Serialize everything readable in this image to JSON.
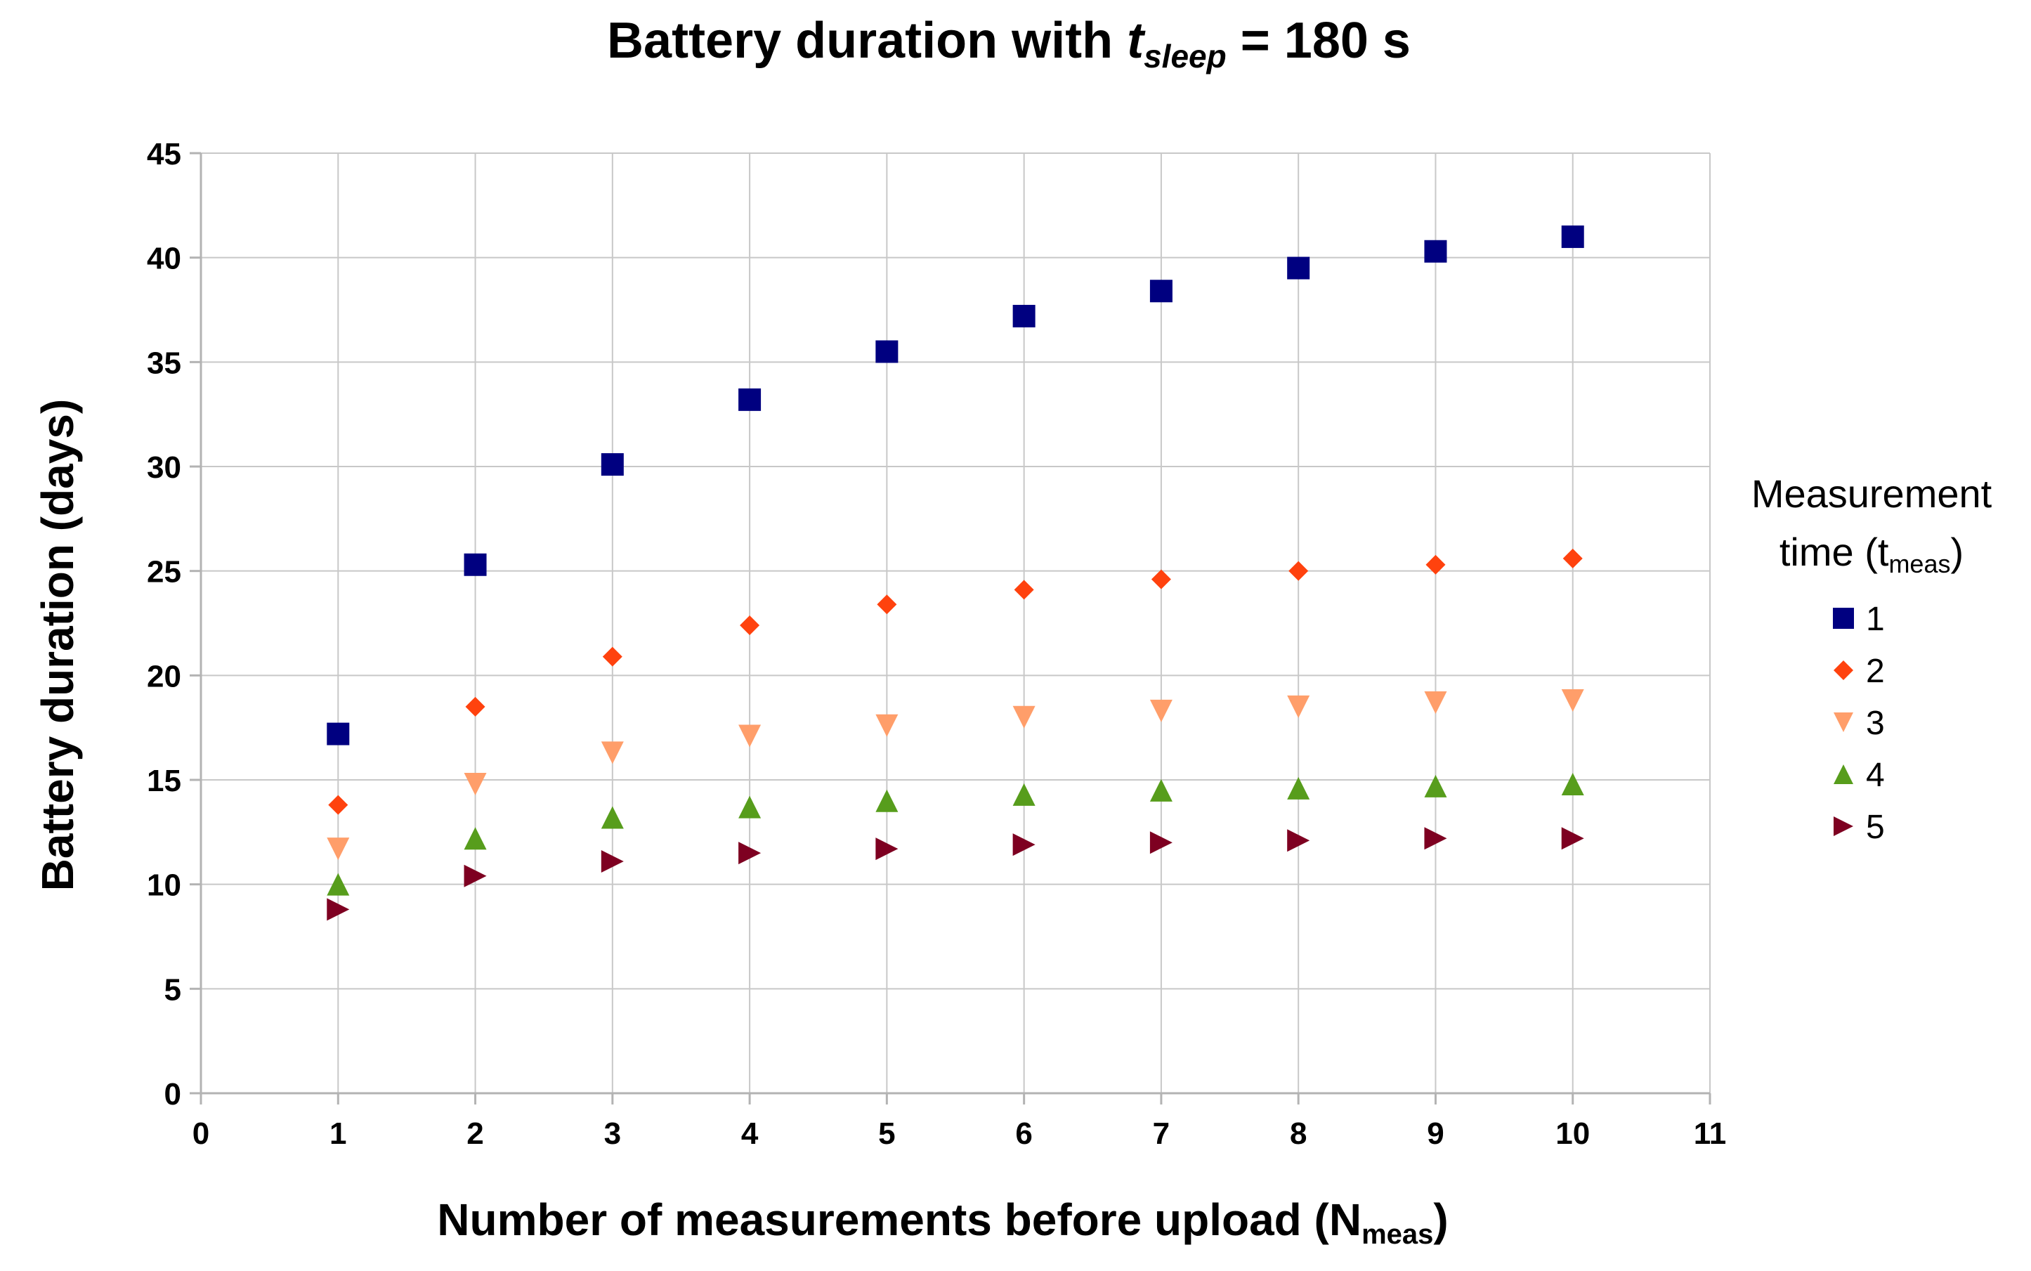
{
  "chart_data": {
    "type": "scatter",
    "title": {
      "main": "Battery duration with ",
      "var_base": "t",
      "var_sub": "sleep",
      "suffix": " = 180 s"
    },
    "xlabel": {
      "main": "Number of measurements before upload (N",
      "sub": "meas",
      "suffix": ")"
    },
    "ylabel": "Battery duration (days)",
    "xlim": [
      0,
      11
    ],
    "ylim": [
      0,
      45
    ],
    "xticks": [
      0,
      1,
      2,
      3,
      4,
      5,
      6,
      7,
      8,
      9,
      10,
      11
    ],
    "yticks": [
      0,
      5,
      10,
      15,
      20,
      25,
      30,
      35,
      40,
      45
    ],
    "grid": true,
    "legend": {
      "title_line1": "Measurement",
      "title_line2_main": "time (t",
      "title_line2_sub": "meas",
      "title_line2_suffix": ")",
      "placement": "right"
    },
    "x": [
      1,
      2,
      3,
      4,
      5,
      6,
      7,
      8,
      9,
      10
    ],
    "series": [
      {
        "name": "1",
        "marker": "square",
        "color": "#000080",
        "values": [
          17.2,
          25.3,
          30.1,
          33.2,
          35.5,
          37.2,
          38.4,
          39.5,
          40.3,
          41.0
        ]
      },
      {
        "name": "2",
        "marker": "diamond",
        "color": "#ff420e",
        "values": [
          13.8,
          18.5,
          20.9,
          22.4,
          23.4,
          24.1,
          24.6,
          25.0,
          25.3,
          25.6
        ]
      },
      {
        "name": "3",
        "marker": "triangle-down",
        "color": "#ff950e",
        "display_color": "#ff9e6a",
        "values": [
          11.7,
          14.8,
          16.3,
          17.1,
          17.6,
          18.0,
          18.3,
          18.5,
          18.7,
          18.8
        ]
      },
      {
        "name": "4",
        "marker": "triangle-up",
        "color": "#579d1c",
        "values": [
          10.0,
          12.2,
          13.2,
          13.7,
          14.0,
          14.3,
          14.5,
          14.6,
          14.7,
          14.8
        ]
      },
      {
        "name": "5",
        "marker": "triangle-right",
        "color": "#7e0021",
        "values": [
          8.8,
          10.4,
          11.1,
          11.5,
          11.7,
          11.9,
          12.0,
          12.1,
          12.2,
          12.2
        ]
      }
    ]
  }
}
